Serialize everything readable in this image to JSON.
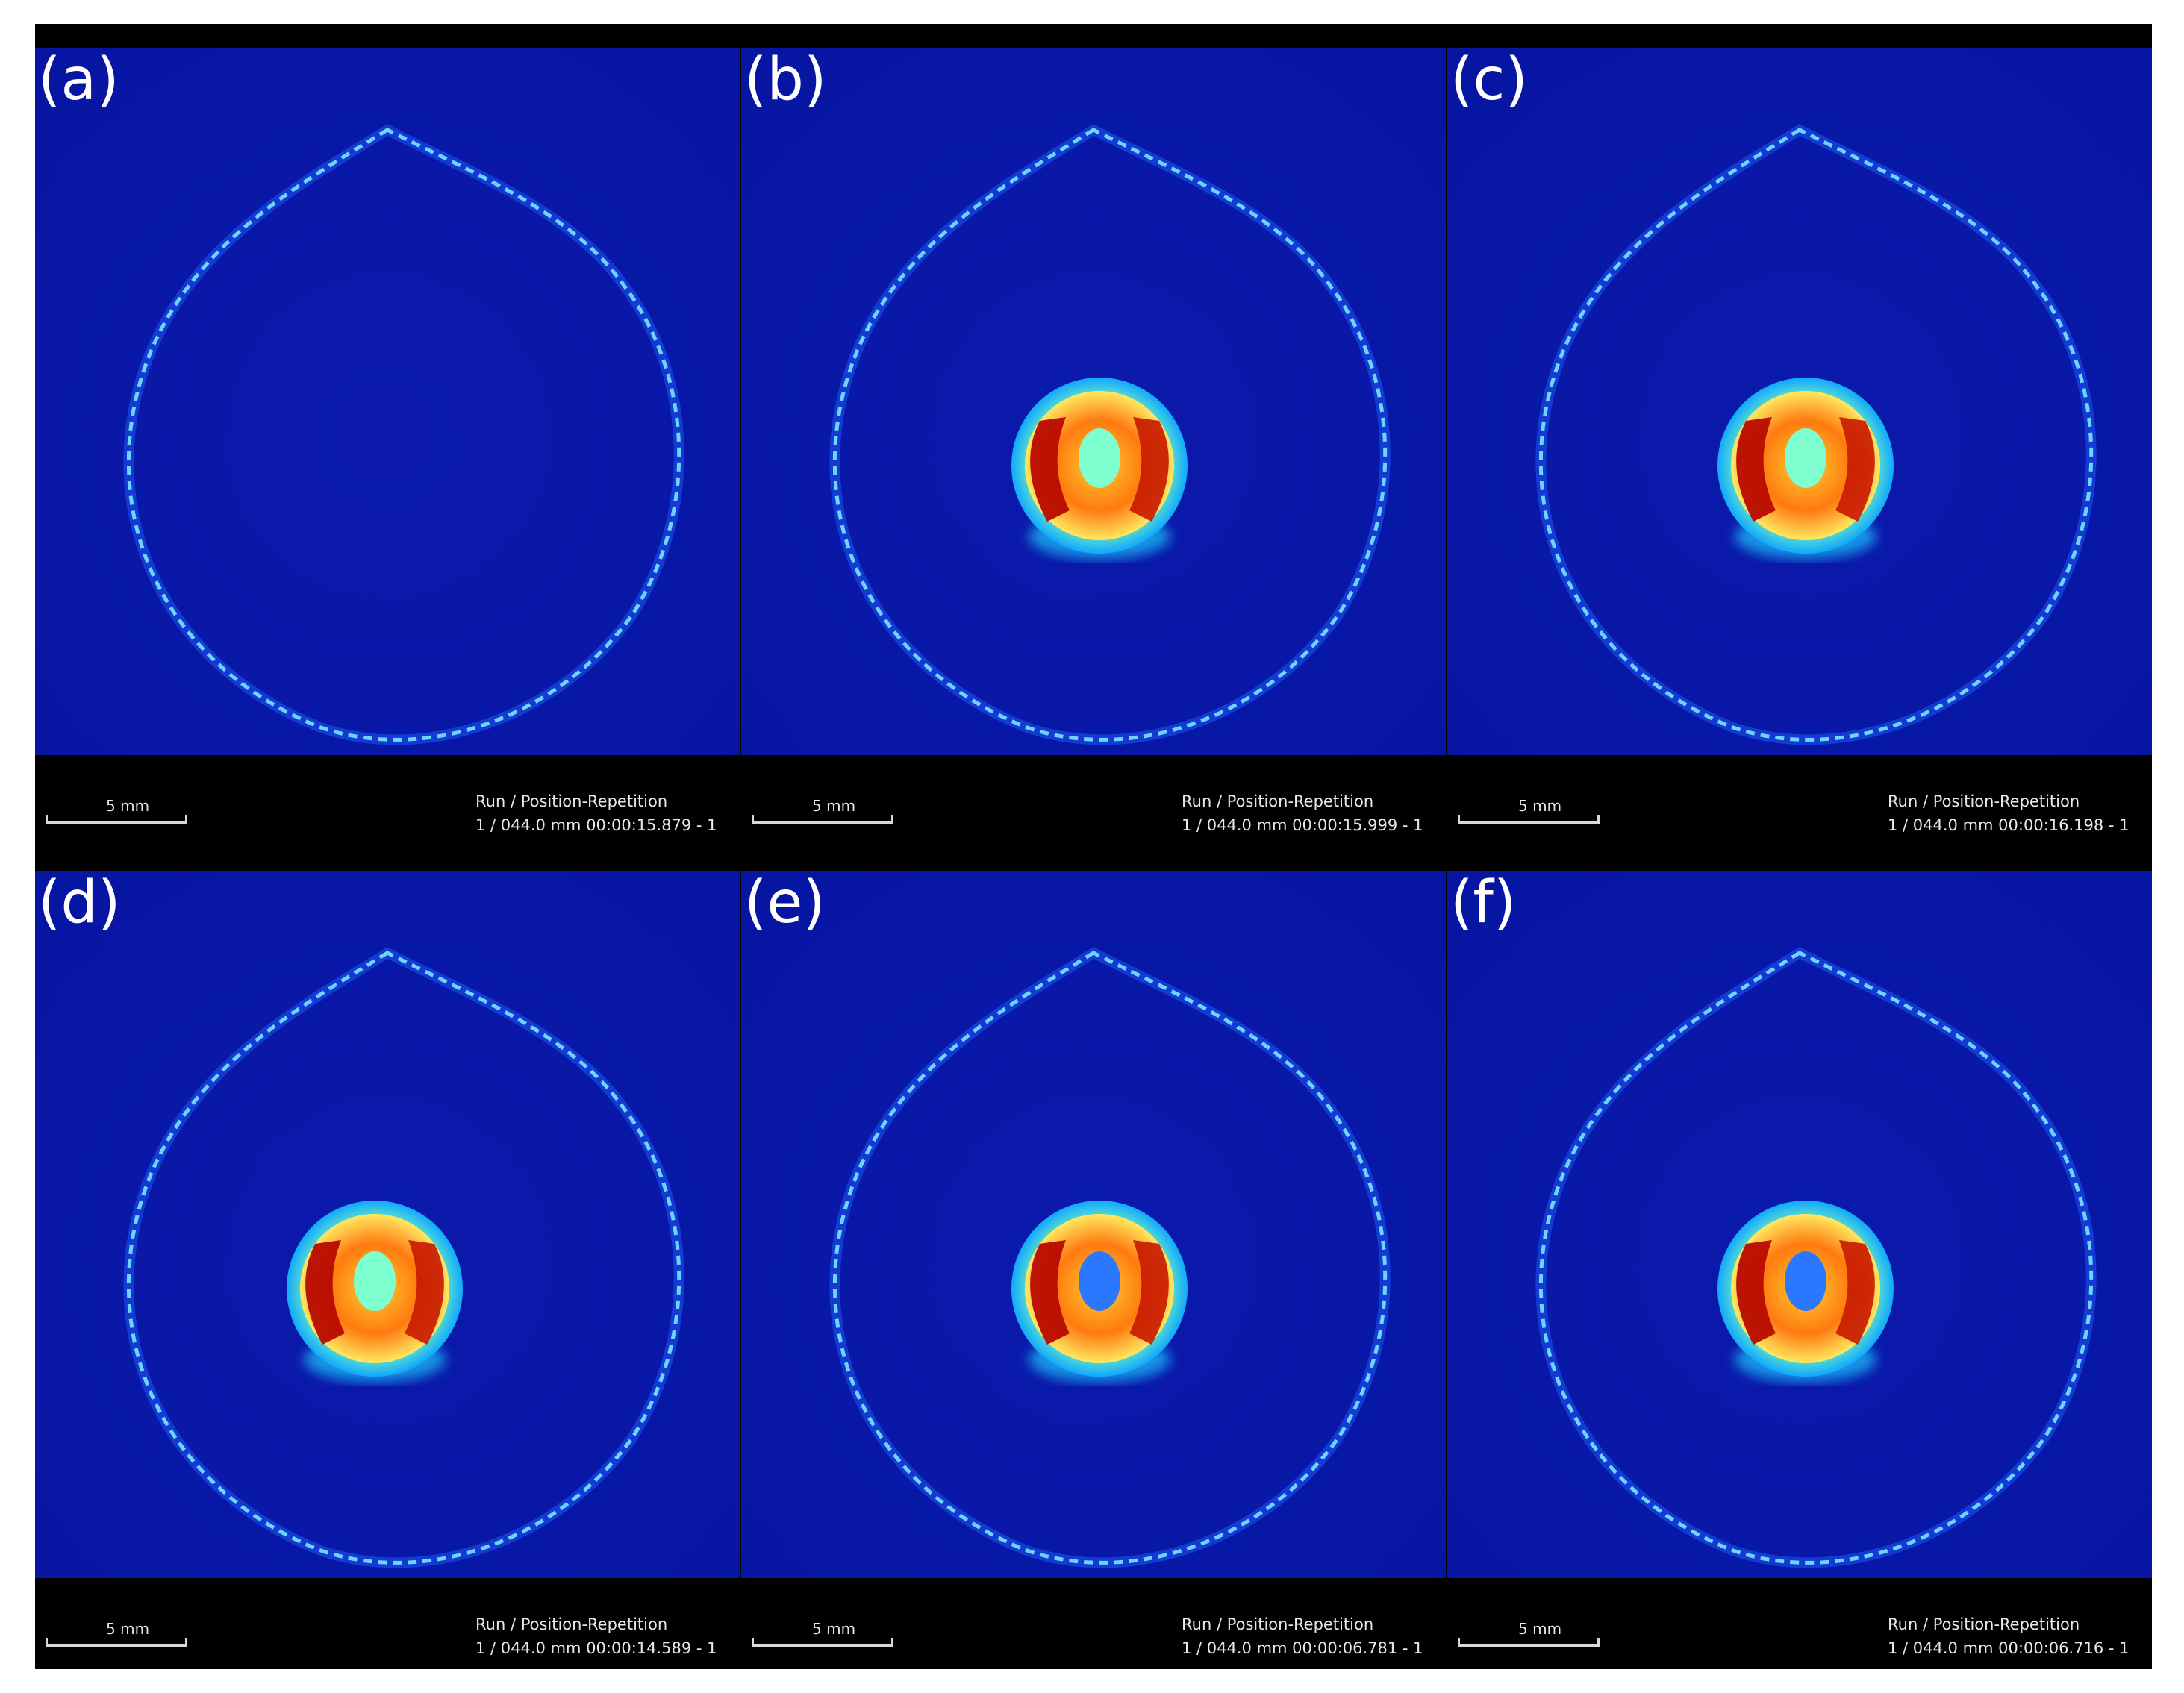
{
  "colors": {
    "background": "#0a16a6",
    "outline": "#4ab8ff",
    "hot": "#d01200",
    "warm": "#ffe03a",
    "cool": "#40ffd8"
  },
  "panels": [
    {
      "label": "(a)",
      "scale": "5 mm",
      "meta_title": "Run / Position-Repetition",
      "meta_value": "1 / 044.0 mm 00:00:15.879 - 1",
      "droplet": false
    },
    {
      "label": "(b)",
      "scale": "5 mm",
      "meta_title": "Run / Position-Repetition",
      "meta_value": "1 / 044.0 mm 00:00:15.999 - 1",
      "droplet": true
    },
    {
      "label": "(c)",
      "scale": "5 mm",
      "meta_title": "Run / Position-Repetition",
      "meta_value": "1 / 044.0 mm 00:00:16.198 - 1",
      "droplet": true
    },
    {
      "label": "(d)",
      "scale": "5 mm",
      "meta_title": "Run / Position-Repetition",
      "meta_value": "1 / 044.0 mm 00:00:14.589 - 1",
      "droplet": true
    },
    {
      "label": "(e)",
      "scale": "5 mm",
      "meta_title": "Run / Position-Repetition",
      "meta_value": "1 / 044.0 mm 00:00:06.781 - 1",
      "droplet": true
    },
    {
      "label": "(f)",
      "scale": "5 mm",
      "meta_title": "Run / Position-Repetition",
      "meta_value": "1 / 044.0 mm 00:00:06.716 - 1",
      "droplet": true
    }
  ]
}
